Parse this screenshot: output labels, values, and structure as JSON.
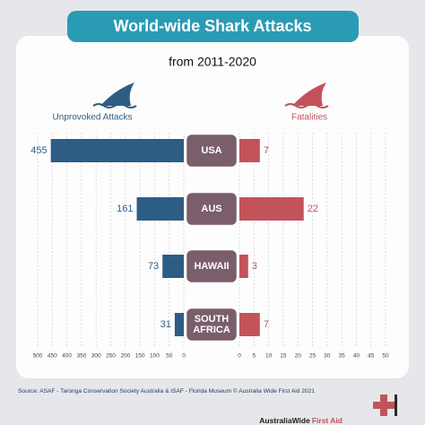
{
  "chart_data": {
    "type": "butterfly",
    "title": "World-wide Shark Attacks",
    "subtitle": "from  2011-2020",
    "categories": [
      "USA",
      "AUS",
      "HAWAII",
      "SOUTH AFRICA"
    ],
    "series": [
      {
        "name": "Unprovoked Attacks",
        "color": "#2d5d84",
        "values": [
          455,
          161,
          73,
          31
        ],
        "axis": "x"
      },
      {
        "name": "Fatalities",
        "color": "#c2535b",
        "values": [
          7,
          22,
          3,
          7
        ],
        "axis": "x2"
      }
    ],
    "xlim": [
      0,
      500
    ],
    "xticks": [
      500,
      450,
      400,
      350,
      300,
      250,
      200,
      150,
      100,
      50,
      0
    ],
    "x2lim": [
      0,
      50
    ],
    "x2ticks": [
      0,
      5,
      10,
      15,
      20,
      25,
      30,
      35,
      40,
      45,
      50
    ],
    "grid": true,
    "source": "Source: ASAF - Taronga Conservation Society Australia & ISAF - Florida Museum © Australia Wide First Aid 2021",
    "logo": {
      "name": "AustraliaWide",
      "emphasis": "First Aid"
    }
  }
}
